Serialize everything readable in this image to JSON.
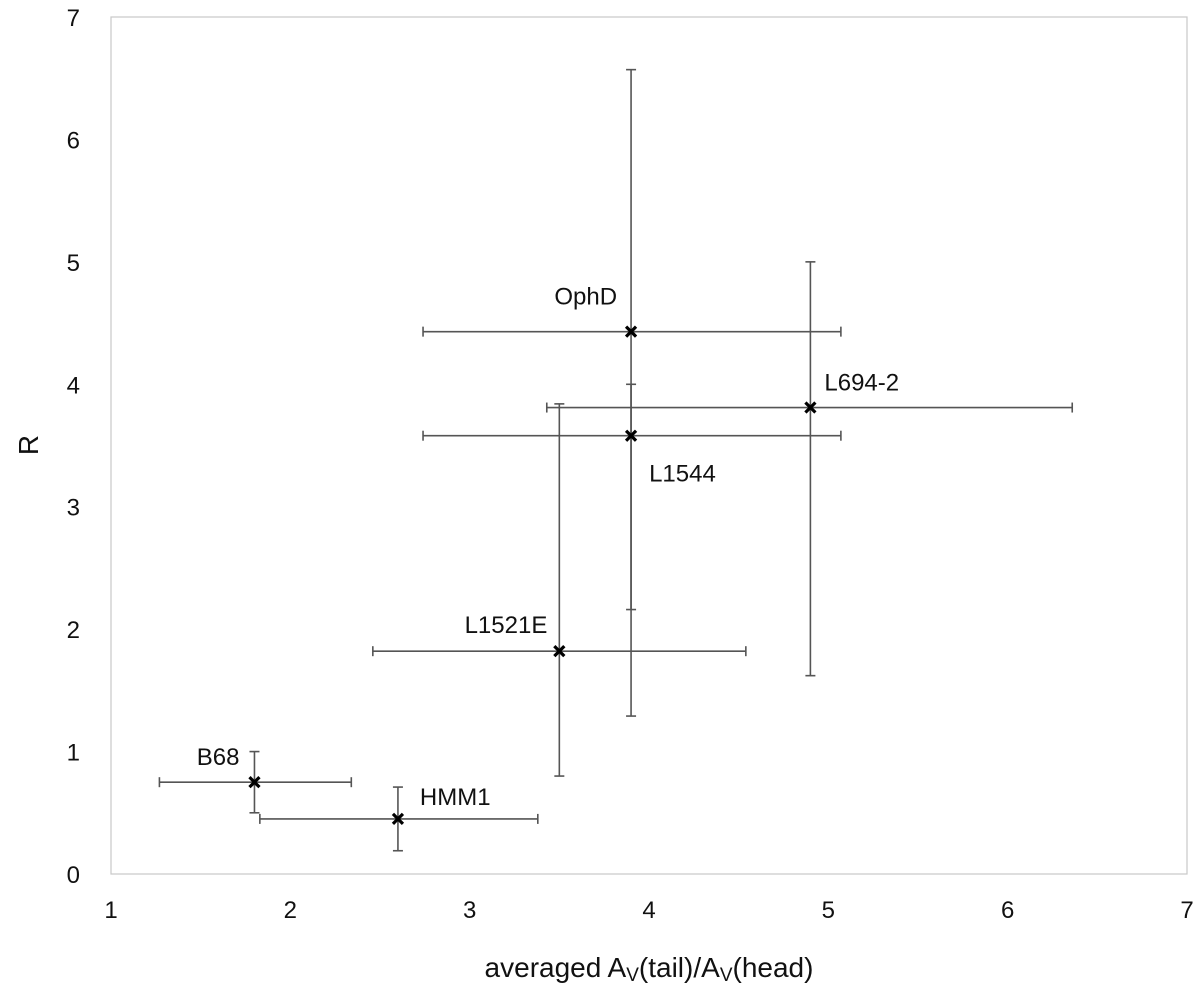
{
  "chart_data": {
    "type": "scatter",
    "title": "",
    "xlabel": "averaged Av(tail)/Av(head)",
    "xlabel_main": "averaged A",
    "xlabel_sub1": "V",
    "xlabel_mid": "(tail)/A",
    "xlabel_sub2": "V",
    "xlabel_end": "(head)",
    "ylabel": "R",
    "xlim": [
      1,
      7
    ],
    "ylim": [
      0,
      7
    ],
    "xticks": [
      1,
      2,
      3,
      4,
      5,
      6,
      7
    ],
    "yticks": [
      0,
      1,
      2,
      3,
      4,
      5,
      6,
      7
    ],
    "grid": false,
    "points": [
      {
        "label": "B68",
        "x": 1.8,
        "y": 0.75,
        "xerr": [
          1.27,
          2.34
        ],
        "yerr": [
          0.5,
          1.0
        ],
        "label_pos": "upper-left"
      },
      {
        "label": "HMM1",
        "x": 2.6,
        "y": 0.45,
        "xerr": [
          1.83,
          3.38
        ],
        "yerr": [
          0.19,
          0.71
        ],
        "label_pos": "upper-right"
      },
      {
        "label": "L1521E",
        "x": 3.5,
        "y": 1.82,
        "xerr": [
          2.46,
          4.54
        ],
        "yerr": [
          0.8,
          3.84
        ],
        "label_pos": "upper-left"
      },
      {
        "label": "L1544",
        "x": 3.9,
        "y": 3.58,
        "xerr": [
          2.74,
          5.07
        ],
        "yerr": [
          2.16,
          4.0
        ],
        "label_pos": "lower-right"
      },
      {
        "label": "OphD",
        "x": 3.9,
        "y": 4.43,
        "xerr": [
          2.74,
          5.07
        ],
        "yerr": [
          1.29,
          6.57
        ],
        "label_pos": "upper-left"
      },
      {
        "label": "L694-2",
        "x": 4.9,
        "y": 3.81,
        "xerr": [
          3.43,
          6.36
        ],
        "yerr": [
          1.62,
          5.0
        ],
        "label_pos": "upper-right"
      }
    ]
  }
}
